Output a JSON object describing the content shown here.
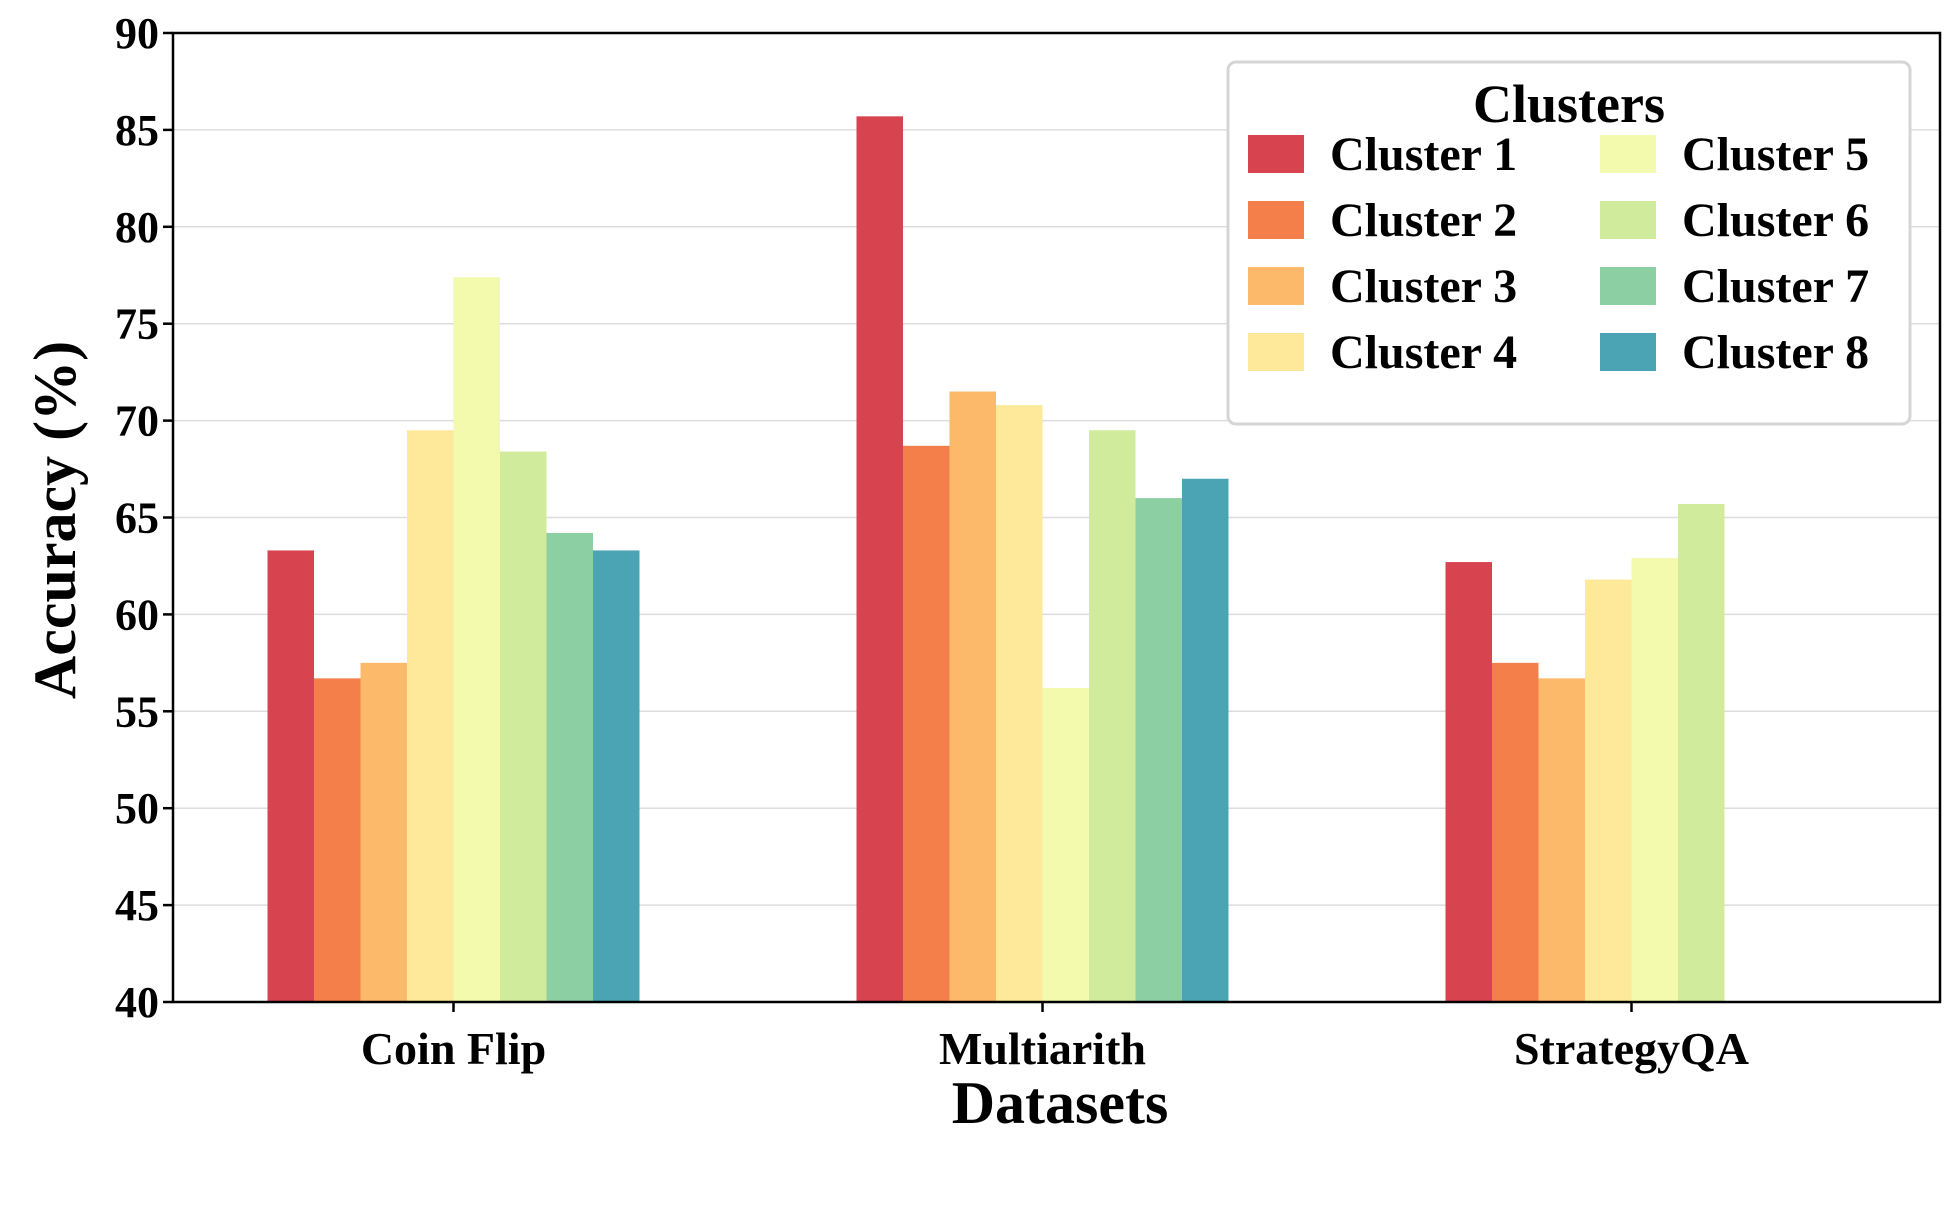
{
  "chart_data": {
    "type": "bar",
    "title": "",
    "xlabel": "Datasets",
    "ylabel": "Accuracy (%)",
    "ylim": [
      40,
      90
    ],
    "yticks": [
      40,
      45,
      50,
      55,
      60,
      65,
      70,
      75,
      80,
      85,
      90
    ],
    "grid": "horizontal",
    "legend": {
      "title": "Clusters",
      "placement": "top-right",
      "columns": 2
    },
    "categories": [
      "Coin Flip",
      "Multiarith",
      "StrategyQA"
    ],
    "series": [
      {
        "name": "Cluster 1",
        "color": "#d7434e",
        "values": [
          63.3,
          85.7,
          62.7
        ]
      },
      {
        "name": "Cluster 2",
        "color": "#f57f4a",
        "values": [
          56.7,
          68.7,
          57.5
        ]
      },
      {
        "name": "Cluster 3",
        "color": "#fdb96a",
        "values": [
          57.5,
          71.5,
          56.7
        ]
      },
      {
        "name": "Cluster 4",
        "color": "#fee89a",
        "values": [
          69.5,
          70.8,
          61.8
        ]
      },
      {
        "name": "Cluster 5",
        "color": "#f3faad",
        "values": [
          77.4,
          56.2,
          62.9
        ]
      },
      {
        "name": "Cluster 6",
        "color": "#d0eb9b",
        "values": [
          68.4,
          69.5,
          65.7
        ]
      },
      {
        "name": "Cluster 7",
        "color": "#8ccfa3",
        "values": [
          64.2,
          66.0,
          null
        ]
      },
      {
        "name": "Cluster 8",
        "color": "#4aa4b3",
        "values": [
          63.3,
          67.0,
          null
        ]
      }
    ]
  }
}
